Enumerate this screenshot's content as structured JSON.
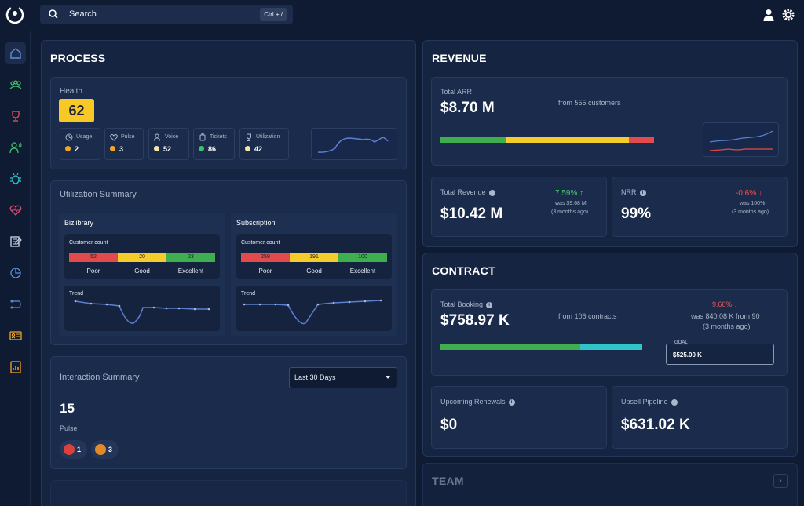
{
  "search": {
    "label": "Search",
    "shortcut": "Ctrl + /"
  },
  "process": {
    "title": "PROCESS",
    "health": {
      "label": "Health",
      "score": "62",
      "metrics": [
        {
          "label": "Usage",
          "value": "2",
          "color": "#f5a524"
        },
        {
          "label": "Pulse",
          "value": "3",
          "color": "#f5a524"
        },
        {
          "label": "Voice",
          "value": "52",
          "color": "#f2e6a8"
        },
        {
          "label": "Tickets",
          "value": "86",
          "color": "#3fbf6a"
        },
        {
          "label": "Utilization",
          "value": "42",
          "color": "#f2e6a8"
        }
      ]
    },
    "utilization": {
      "title": "Utilization Summary",
      "groups": [
        {
          "name": "Bizlibrary",
          "count_label": "Customer count",
          "counts": [
            "52",
            "20",
            "23"
          ],
          "levels": [
            "Poor",
            "Good",
            "Excellent"
          ],
          "trend_label": "Trend"
        },
        {
          "name": "Subscription",
          "count_label": "Customer count",
          "counts": [
            "259",
            "191",
            "100"
          ],
          "levels": [
            "Poor",
            "Good",
            "Excellent"
          ],
          "trend_label": "Trend"
        }
      ]
    },
    "interaction": {
      "title": "Interaction Summary",
      "range": "Last 30 Days",
      "value": "15",
      "label": "Pulse",
      "chips": [
        {
          "value": "1",
          "color": "#d8413c"
        },
        {
          "value": "3",
          "color": "#e08a2c"
        }
      ]
    }
  },
  "revenue": {
    "title": "REVENUE",
    "arr": {
      "label": "Total ARR",
      "value": "$8.70 M",
      "note": "from 555 customers"
    },
    "total_revenue": {
      "label": "Total Revenue",
      "value": "$10.42 M",
      "change": "7.59%",
      "was": "was $9.68 M",
      "period": "(3 months ago)"
    },
    "nrr": {
      "label": "NRR",
      "value": "99%",
      "change": "-0.6%",
      "was": "was 100%",
      "period": "(3 months ago)"
    }
  },
  "contract": {
    "title": "CONTRACT",
    "booking": {
      "label": "Total Booking",
      "value": "$758.97 K",
      "note": "from 106 contracts",
      "change": "9.66%",
      "was": "was 840.08 K from 90",
      "period": "(3 months ago)",
      "goal_label": "GOAL",
      "goal_value": "$525.00 K"
    },
    "renewals": {
      "label": "Upcoming Renewals",
      "value": "$0"
    },
    "upsell": {
      "label": "Upsell Pipeline",
      "value": "$631.02 K"
    }
  },
  "team": {
    "title": "TEAM"
  },
  "colors": {
    "green": "#3fae4f",
    "yellow": "#f5cd2b",
    "red": "#e24b4b",
    "teal": "#2ec4c9",
    "up": "#4cc46a",
    "down": "#ee5353"
  }
}
